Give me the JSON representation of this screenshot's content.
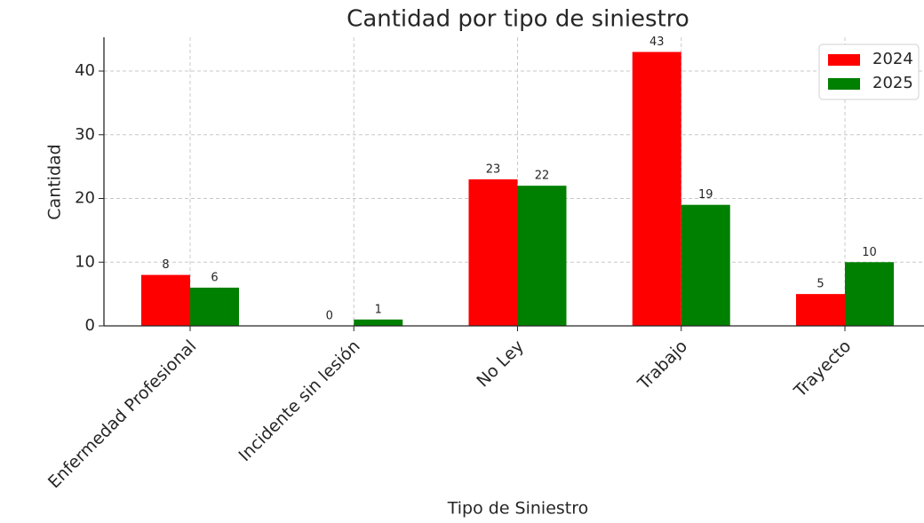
{
  "chart_data": {
    "type": "bar",
    "title": "Cantidad por tipo de siniestro",
    "x_label": "Tipo de Siniestro",
    "y_label": "Cantidad",
    "categories": [
      "Enfermedad Profesional",
      "Incidente sin lesión",
      "No Ley",
      "Trabajo",
      "Trayecto"
    ],
    "series": [
      {
        "name": "2024",
        "color": "#ff0000",
        "values": [
          8,
          0,
          23,
          43,
          5
        ]
      },
      {
        "name": "2025",
        "color": "#008000",
        "values": [
          6,
          1,
          22,
          19,
          10
        ]
      }
    ],
    "ylim": [
      0,
      45.3
    ],
    "yticks": [
      0,
      10,
      20,
      30,
      40
    ],
    "grid": true,
    "legend": "upper right"
  }
}
